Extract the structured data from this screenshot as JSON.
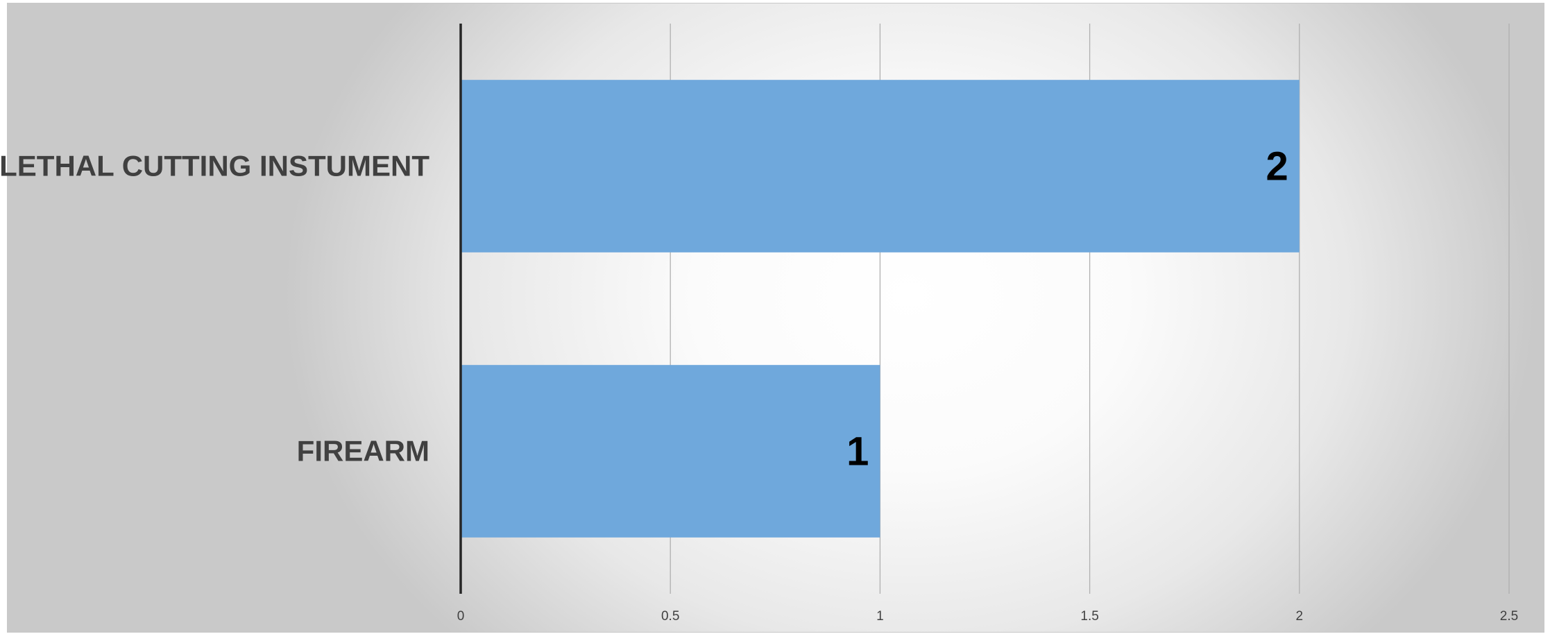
{
  "chart_data": {
    "type": "bar",
    "orientation": "horizontal",
    "title": "",
    "xlabel": "",
    "ylabel": "",
    "categories": [
      "LETHAL CUTTING INSTUMENT",
      "FIREARM"
    ],
    "values": [
      2,
      1
    ],
    "xlim": [
      0,
      2.5
    ],
    "x_ticks": [
      0,
      0.5,
      1,
      1.5,
      2,
      2.5
    ],
    "x_tick_labels": [
      "0",
      "0.5",
      "1",
      "1.5",
      "2",
      "2.5"
    ],
    "data_labels": [
      "2",
      "1"
    ],
    "grid": true,
    "legend": "none",
    "bar_color": "#6fa8dc"
  }
}
